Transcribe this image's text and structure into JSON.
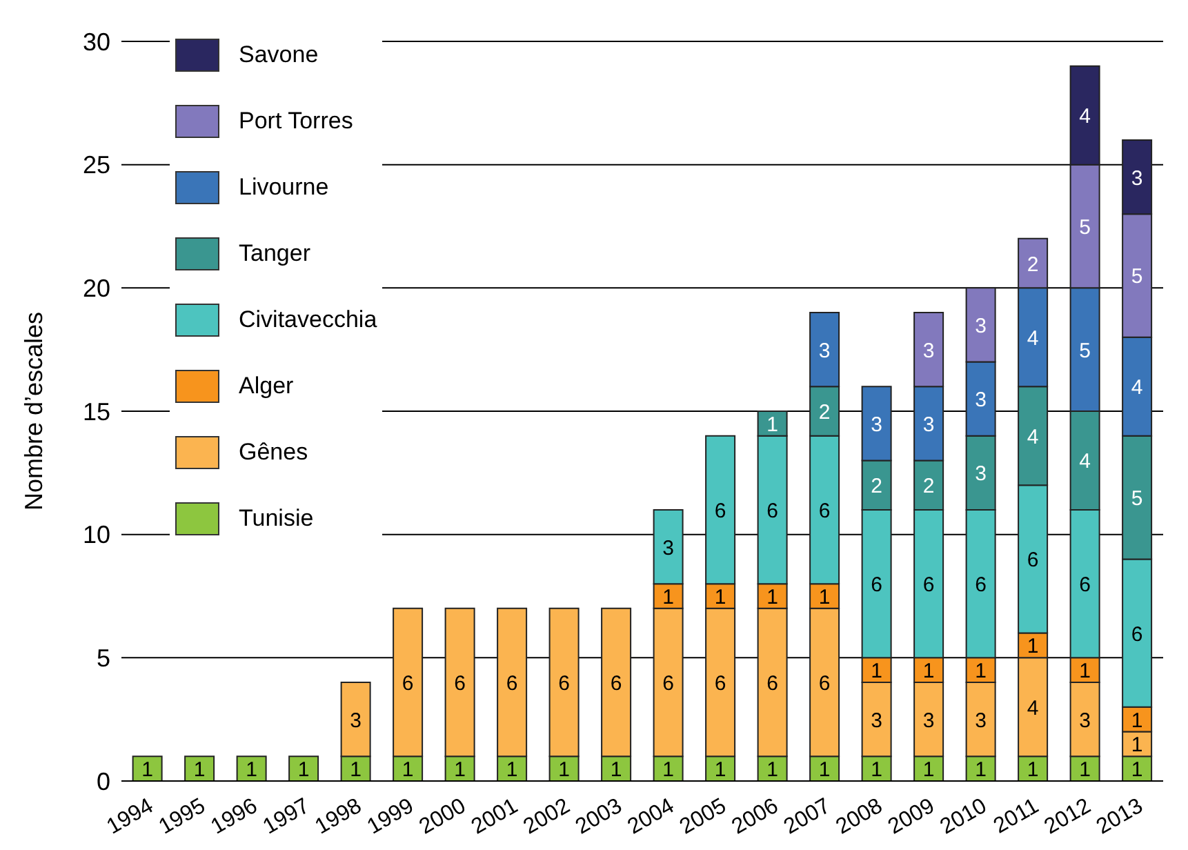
{
  "chart_data": {
    "type": "bar",
    "stacked": true,
    "ylabel": "Nombre d’escales",
    "categories": [
      "1994",
      "1995",
      "1996",
      "1997",
      "1998",
      "1999",
      "2000",
      "2001",
      "2002",
      "2003",
      "2004",
      "2005",
      "2006",
      "2007",
      "2008",
      "2009",
      "2010",
      "2011",
      "2012",
      "2013"
    ],
    "series": [
      {
        "name": "Tunisie",
        "color": "#8dc63f",
        "values": [
          1,
          1,
          1,
          1,
          1,
          1,
          1,
          1,
          1,
          1,
          1,
          1,
          1,
          1,
          1,
          1,
          1,
          1,
          1,
          1
        ]
      },
      {
        "name": "Gênes",
        "color": "#fbb450",
        "values": [
          null,
          null,
          null,
          null,
          3,
          6,
          6,
          6,
          6,
          6,
          6,
          6,
          6,
          6,
          3,
          3,
          3,
          4,
          3,
          1
        ]
      },
      {
        "name": "Alger",
        "color": "#f7941d",
        "values": [
          null,
          null,
          null,
          null,
          null,
          null,
          null,
          null,
          null,
          null,
          1,
          1,
          1,
          1,
          1,
          1,
          1,
          1,
          1,
          1
        ]
      },
      {
        "name": "Civitavecchia",
        "color": "#4dc4bf",
        "values": [
          null,
          null,
          null,
          null,
          null,
          null,
          null,
          null,
          null,
          null,
          3,
          6,
          6,
          6,
          6,
          6,
          6,
          6,
          6,
          6
        ]
      },
      {
        "name": "Tanger",
        "color": "#3a9690",
        "values": [
          null,
          null,
          null,
          null,
          null,
          null,
          null,
          null,
          null,
          null,
          null,
          null,
          1,
          2,
          2,
          2,
          3,
          4,
          4,
          5
        ]
      },
      {
        "name": "Livourne",
        "color": "#3a75b8",
        "values": [
          null,
          null,
          null,
          null,
          null,
          null,
          null,
          null,
          null,
          null,
          null,
          null,
          null,
          3,
          3,
          3,
          3,
          4,
          5,
          4
        ]
      },
      {
        "name": "Port Torres",
        "color": "#8279bd",
        "values": [
          null,
          null,
          null,
          null,
          null,
          null,
          null,
          null,
          null,
          null,
          null,
          null,
          null,
          null,
          null,
          3,
          3,
          2,
          5,
          5
        ]
      },
      {
        "name": "Savone",
        "color": "#2a2760",
        "values": [
          null,
          null,
          null,
          null,
          null,
          null,
          null,
          null,
          null,
          null,
          null,
          null,
          null,
          null,
          null,
          null,
          null,
          null,
          4,
          3
        ]
      }
    ],
    "ylim": [
      0,
      30
    ],
    "yticks": [
      0,
      5,
      10,
      15,
      20,
      25,
      30
    ],
    "grid": "y",
    "legend": "top left",
    "data_labels": true
  }
}
